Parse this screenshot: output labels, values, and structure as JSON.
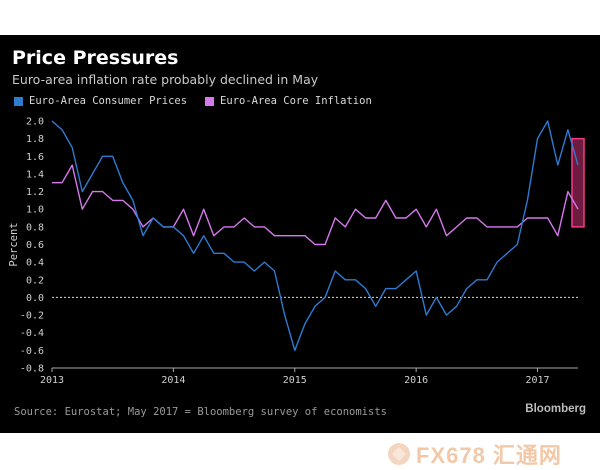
{
  "header": {
    "title": "Price Pressures",
    "subtitle": "Euro-area inflation rate probably declined in May"
  },
  "footer": {
    "source": "Source: Eurostat; May 2017 = Bloomberg survey of economists",
    "brand": "Bloomberg"
  },
  "watermark": {
    "text": "FX678 汇通网"
  },
  "colors": {
    "background": "#000000",
    "series1": "#2e7bd1",
    "series2": "#d678ee",
    "highlight": "#f23c8a",
    "zero_line": "#dddddd"
  },
  "chart_data": {
    "type": "line",
    "title": "Price Pressures",
    "subtitle": "Euro-area inflation rate probably declined in May",
    "xlabel": "",
    "ylabel": "Percent",
    "ylim": [
      -0.8,
      2.0
    ],
    "yticks": [
      "2.0",
      "1.8",
      "1.6",
      "1.4",
      "1.2",
      "1.0",
      "0.8",
      "0.6",
      "0.4",
      "0.2",
      "0.0",
      "-0.2",
      "-0.4",
      "-0.6",
      "-0.8"
    ],
    "x_tick_labels": [
      "2013",
      "2014",
      "2015",
      "2016",
      "2017"
    ],
    "x_start_month": "2013-01",
    "x_end_month": "2017-05",
    "zero_line": "dashed",
    "legend_position": "top-left",
    "series": [
      {
        "name": "Euro-Area Consumer Prices",
        "values": [
          2.0,
          1.9,
          1.7,
          1.2,
          1.4,
          1.6,
          1.6,
          1.3,
          1.1,
          0.7,
          0.9,
          0.8,
          0.8,
          0.7,
          0.5,
          0.7,
          0.5,
          0.5,
          0.4,
          0.4,
          0.3,
          0.4,
          0.3,
          -0.2,
          -0.6,
          -0.3,
          -0.1,
          0.0,
          0.3,
          0.2,
          0.2,
          0.1,
          -0.1,
          0.1,
          0.1,
          0.2,
          0.3,
          -0.2,
          0.0,
          -0.2,
          -0.1,
          0.1,
          0.2,
          0.2,
          0.4,
          0.5,
          0.6,
          1.1,
          1.8,
          2.0,
          1.5,
          1.9,
          1.5
        ]
      },
      {
        "name": "Euro-Area Core Inflation",
        "values": [
          1.3,
          1.3,
          1.5,
          1.0,
          1.2,
          1.2,
          1.1,
          1.1,
          1.0,
          0.8,
          0.9,
          0.8,
          0.8,
          1.0,
          0.7,
          1.0,
          0.7,
          0.8,
          0.8,
          0.9,
          0.8,
          0.8,
          0.7,
          0.7,
          0.7,
          0.7,
          0.6,
          0.6,
          0.9,
          0.8,
          1.0,
          0.9,
          0.9,
          1.1,
          0.9,
          0.9,
          1.0,
          0.8,
          1.0,
          0.7,
          0.8,
          0.9,
          0.9,
          0.8,
          0.8,
          0.8,
          0.8,
          0.9,
          0.9,
          0.9,
          0.7,
          1.2,
          1.0
        ]
      }
    ],
    "highlight": {
      "label": "May 2017 = Bloomberg survey of economists",
      "x_month": "2017-05",
      "y_range": [
        0.8,
        1.8
      ]
    }
  }
}
